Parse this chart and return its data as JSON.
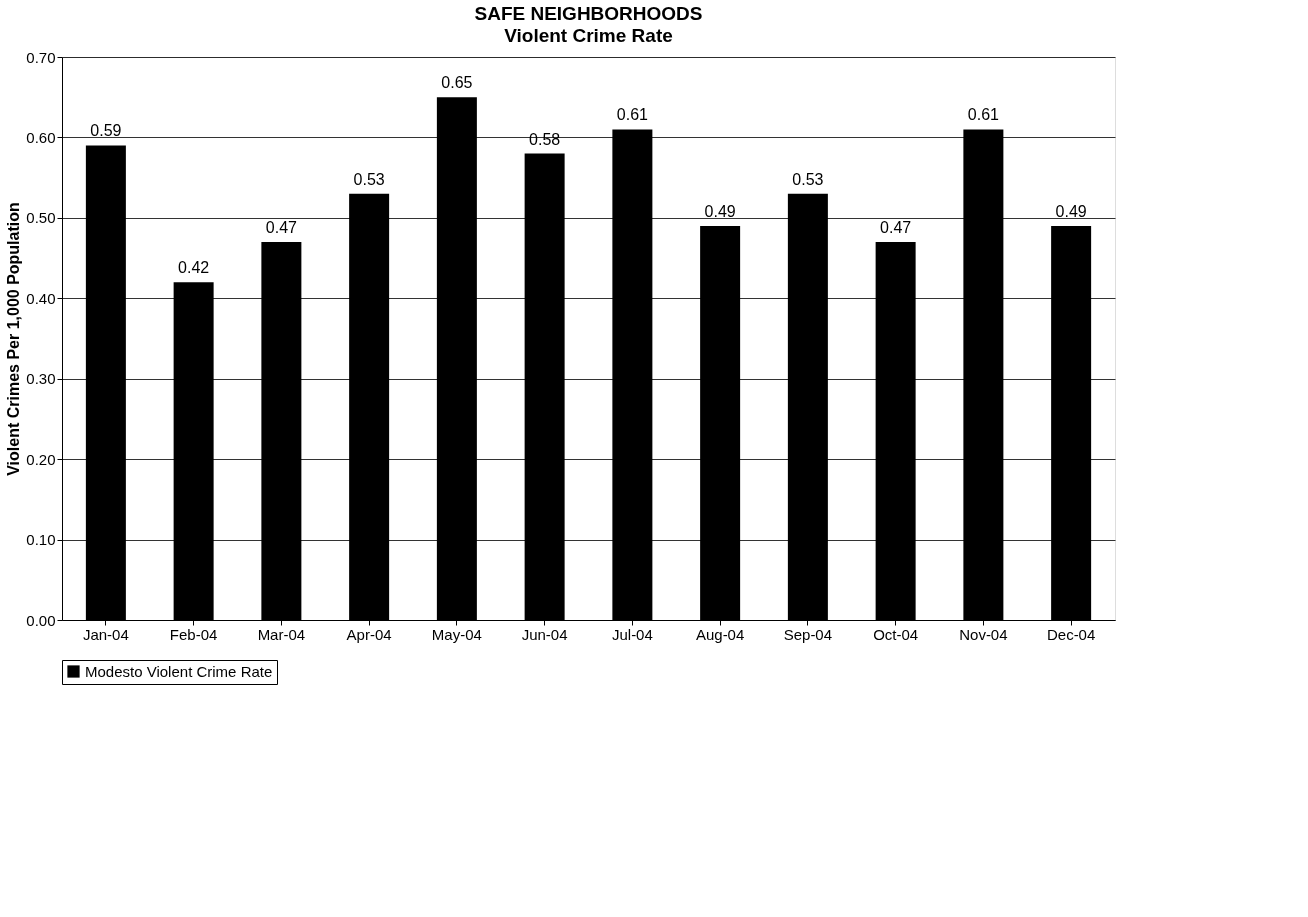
{
  "chart_data": {
    "type": "bar",
    "title": "SAFE NEIGHBORHOODS",
    "subtitle": "Violent Crime Rate",
    "ylabel": "Violent Crimes Per 1,000 Population",
    "categories": [
      "Jan-04",
      "Feb-04",
      "Mar-04",
      "Apr-04",
      "May-04",
      "Jun-04",
      "Jul-04",
      "Aug-04",
      "Sep-04",
      "Oct-04",
      "Nov-04",
      "Dec-04"
    ],
    "series": [
      {
        "name": "Modesto Violent Crime Rate",
        "color": "#000000",
        "values": [
          0.59,
          0.42,
          0.47,
          0.53,
          0.65,
          0.58,
          0.61,
          0.49,
          0.53,
          0.47,
          0.61,
          0.49
        ]
      }
    ],
    "ylim": [
      0,
      0.7
    ],
    "yticks": [
      {
        "value": 0,
        "label": "0.00"
      },
      {
        "value": 0.1,
        "label": "0.10"
      },
      {
        "value": 0.2,
        "label": "0.20"
      },
      {
        "value": 0.3,
        "label": "0.30"
      },
      {
        "value": 0.4,
        "label": "0.40"
      },
      {
        "value": 0.5,
        "label": "0.50"
      },
      {
        "value": 0.6,
        "label": "0.60"
      },
      {
        "value": 0.7,
        "label": "0.70"
      }
    ],
    "data_labels": true,
    "grid": "y",
    "legend": "bottom"
  }
}
